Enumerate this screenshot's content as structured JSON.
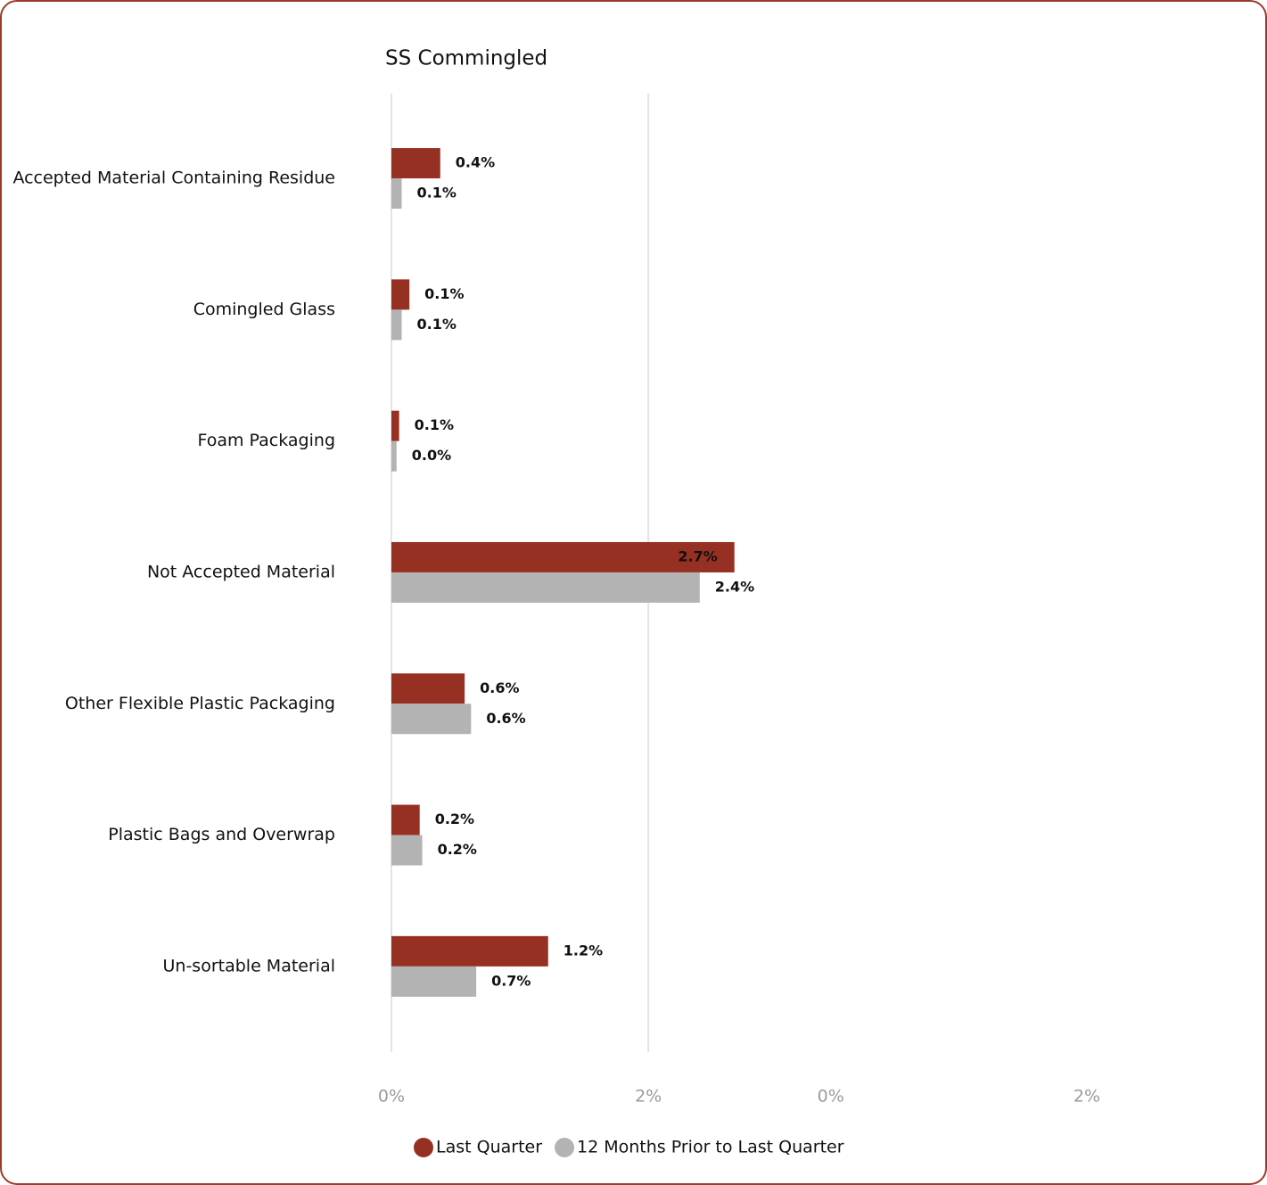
{
  "chart_data": {
    "type": "bar",
    "orientation": "horizontal",
    "title": "SS Commingled",
    "categories": [
      "Accepted Material Containing Residue",
      "Comingled Glass",
      "Foam Packaging",
      "Not Accepted Material",
      "Other Flexible Plastic Packaging",
      "Plastic Bags and Overwrap",
      "Un-sortable Material"
    ],
    "series": [
      {
        "name": "Last Quarter",
        "color": "#963022",
        "values": [
          0.38,
          0.14,
          0.06,
          2.67,
          0.57,
          0.22,
          1.22
        ],
        "value_labels": [
          "0.4%",
          "0.1%",
          "0.1%",
          "2.7%",
          "0.6%",
          "0.2%",
          "1.2%"
        ]
      },
      {
        "name": "12 Months Prior to Last Quarter",
        "color": "#b3b3b3",
        "values": [
          0.08,
          0.08,
          0.04,
          2.4,
          0.62,
          0.24,
          0.66
        ],
        "value_labels": [
          "0.1%",
          "0.1%",
          "0.0%",
          "2.4%",
          "0.6%",
          "0.2%",
          "0.7%"
        ]
      }
    ],
    "xlim": [
      0,
      6.67
    ],
    "xticks": [
      {
        "value": 0,
        "label": "0%"
      },
      {
        "value": 2,
        "label": "2%"
      }
    ],
    "x2lim": [
      -3.43,
      3.26
    ],
    "x2ticks": [
      {
        "value": 0,
        "label": "0%"
      },
      {
        "value": 2,
        "label": "2%"
      }
    ],
    "grid": true,
    "legend": "bottom"
  }
}
